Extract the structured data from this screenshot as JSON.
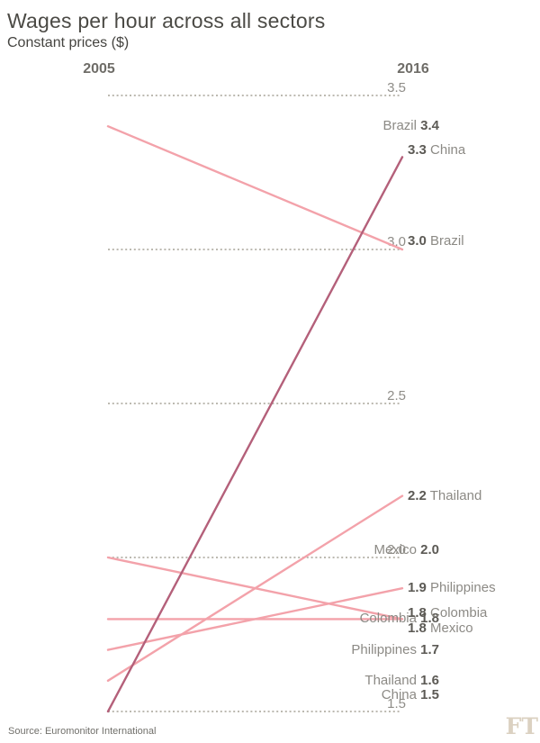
{
  "header": {
    "title": "Wages per hour across all sectors",
    "subtitle": "Constant prices ($)"
  },
  "footer": {
    "source": "Source: Euromonitor International",
    "logo": "FT"
  },
  "chart_data": {
    "type": "line",
    "subtype": "slope",
    "title": "Wages per hour across all sectors",
    "subtitle": "Constant prices ($)",
    "columns": [
      "2005",
      "2016"
    ],
    "ylabel": "Constant prices ($)",
    "ylim": [
      1.5,
      3.5
    ],
    "gridlines": [
      "3.5",
      "3.0",
      "2.5",
      "2.0",
      "1.5"
    ],
    "grid": true,
    "legend_position": "inline-labels",
    "colors": {
      "line": "#f3a2aa",
      "highlight": "#b4607a",
      "grid": "#bcb9b0"
    },
    "series": [
      {
        "name": "Brazil",
        "values": [
          "3.4",
          "3.0"
        ],
        "highlight": false,
        "label_dy": [
          0,
          -9
        ]
      },
      {
        "name": "Mexico",
        "values": [
          "2.0",
          "1.8"
        ],
        "highlight": false,
        "label_dy": [
          -8,
          11
        ]
      },
      {
        "name": "Colombia",
        "values": [
          "1.8",
          "1.8"
        ],
        "highlight": false,
        "label_dy": [
          0,
          -6
        ]
      },
      {
        "name": "Philippines",
        "values": [
          "1.7",
          "1.9"
        ],
        "highlight": false,
        "label_dy": [
          0,
          0
        ]
      },
      {
        "name": "Thailand",
        "values": [
          "1.6",
          "2.2"
        ],
        "highlight": false,
        "label_dy": [
          0,
          0
        ]
      },
      {
        "name": "China",
        "values": [
          "1.5",
          "3.3"
        ],
        "highlight": true,
        "label_dy": [
          -18,
          -7
        ]
      }
    ],
    "source": "Source: Euromonitor International"
  }
}
